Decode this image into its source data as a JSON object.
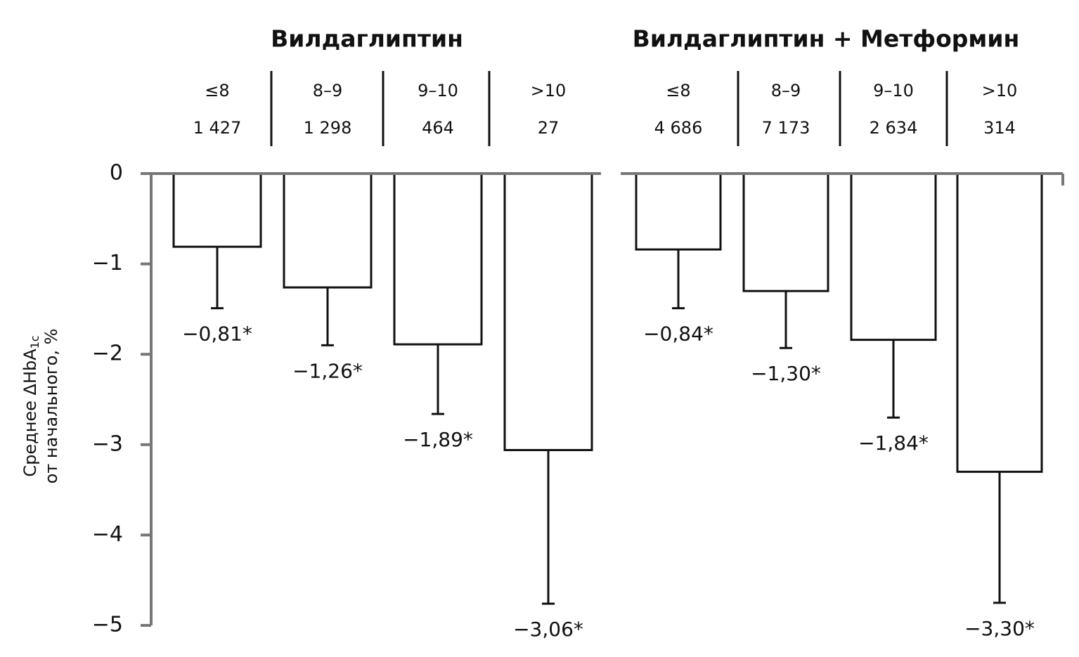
{
  "chart_data": {
    "type": "bar",
    "ylabel": [
      "Среднее ΔHbA",
      "1c",
      "от начального, %"
    ],
    "ylim": [
      -5,
      0
    ],
    "yticks": [
      0,
      {
        "value": -1,
        "label": "−1"
      },
      {
        "value": -2,
        "label": "−2"
      },
      {
        "value": -3,
        "label": "−3"
      },
      {
        "value": -4,
        "label": "−4"
      },
      {
        "value": -5,
        "label": "−5"
      }
    ],
    "color": "#ffffff",
    "panels": [
      {
        "title": "Вилдаглиптин",
        "categories": [
          "≤8",
          "8–9",
          "9–10",
          ">10"
        ],
        "n_labels": [
          "1 427",
          "1 298",
          "464",
          "27"
        ],
        "values": [
          -0.81,
          -1.26,
          -1.89,
          -3.06
        ],
        "value_labels": [
          "−0,81*",
          "−1,26*",
          "−1,89*",
          "−3,06*"
        ],
        "errors": [
          0.68,
          0.64,
          0.77,
          1.7
        ]
      },
      {
        "title": "Вилдаглиптин + Метформин",
        "categories": [
          "≤8",
          "8–9",
          "9–10",
          ">10"
        ],
        "n_labels": [
          "4 686",
          "7 173",
          "2 634",
          "314"
        ],
        "values": [
          -0.84,
          -1.3,
          -1.84,
          -3.3
        ],
        "value_labels": [
          "−0,84*",
          "−1,30*",
          "−1,84*",
          "−3,30*"
        ],
        "errors": [
          0.65,
          0.63,
          0.86,
          1.45
        ]
      }
    ]
  }
}
